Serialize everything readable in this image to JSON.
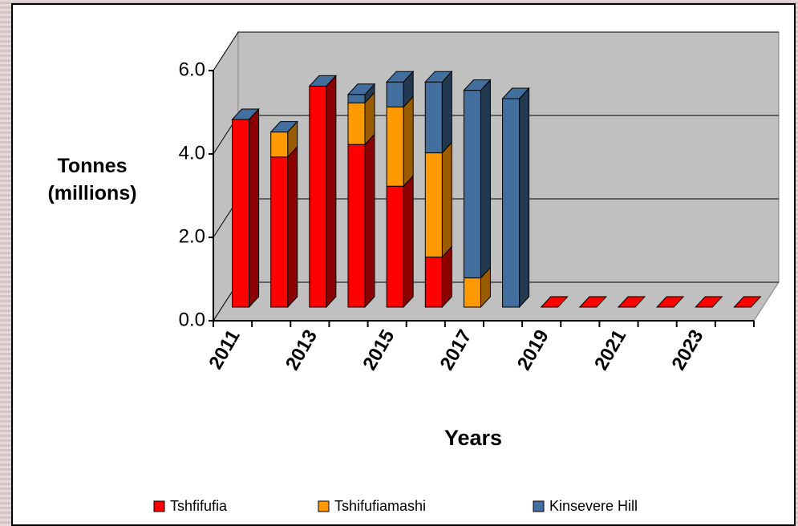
{
  "chart_data": {
    "type": "bar3d_stacked",
    "y_label": "Tonnes (millions)",
    "x_label": "Years",
    "categories": [
      "2011",
      null,
      "2013",
      null,
      "2015",
      null,
      "2017",
      null,
      "2019",
      null,
      "2021",
      null,
      "2023",
      null
    ],
    "series": [
      {
        "name": "Tshfifufia",
        "color": "#ff0000",
        "side": "#8b0000",
        "values": [
          4.5,
          3.6,
          5.3,
          3.9,
          2.9,
          1.2,
          0,
          0,
          0,
          0,
          0,
          0,
          0,
          0
        ]
      },
      {
        "name": "Tshifufiamashi",
        "color": "#ff9900",
        "side": "#9a5c00",
        "values": [
          0,
          0.6,
          0,
          1.0,
          1.9,
          2.5,
          0.7,
          0,
          0,
          0,
          0,
          0,
          0,
          0
        ]
      },
      {
        "name": "Kinsevere Hill",
        "color": "#426f9e",
        "side": "#22394f",
        "values": [
          0,
          0,
          0,
          0.2,
          0.6,
          1.7,
          4.5,
          5.0,
          0,
          0,
          0,
          0,
          0,
          0
        ]
      }
    ],
    "ylim": [
      0,
      6
    ],
    "yticks": [
      {
        "value": 0,
        "label": "0.0"
      },
      {
        "value": 2,
        "label": "2.0"
      },
      {
        "value": 4,
        "label": "4.0"
      },
      {
        "value": 6,
        "label": "6.0"
      }
    ],
    "grid": true,
    "legend": "bottom"
  }
}
